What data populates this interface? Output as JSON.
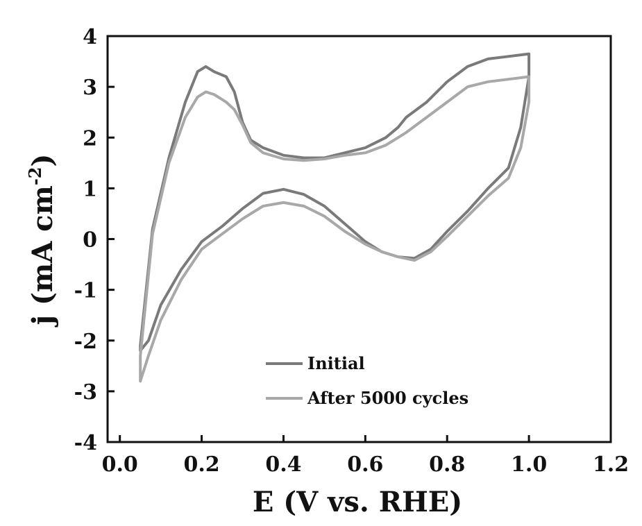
{
  "chart_data": {
    "type": "line",
    "title": "",
    "xlabel": "E (V vs. RHE)",
    "ylabel": "j (mA cm",
    "ylabel_superscript": "-2",
    "ylabel_suffix": ")",
    "xlim": [
      -0.03,
      1.2
    ],
    "ylim": [
      -4,
      4
    ],
    "xticks": [
      0.0,
      0.2,
      0.4,
      0.6,
      0.8,
      1.0,
      1.2
    ],
    "xtick_labels": [
      "0.0",
      "0.2",
      "0.4",
      "0.6",
      "0.8",
      "1.0",
      "1.2"
    ],
    "yticks": [
      -4,
      -3,
      -2,
      -1,
      0,
      1,
      2,
      3,
      4
    ],
    "ytick_labels": [
      "-4",
      "-3",
      "-2",
      "-1",
      "0",
      "1",
      "2",
      "3",
      "4"
    ],
    "grid": false,
    "legend_position": "bottom-center",
    "series": [
      {
        "name": "Initial",
        "color": "#7a7a7a",
        "x": [
          0.05,
          0.08,
          0.12,
          0.16,
          0.19,
          0.21,
          0.23,
          0.26,
          0.28,
          0.3,
          0.32,
          0.35,
          0.4,
          0.45,
          0.5,
          0.55,
          0.6,
          0.65,
          0.68,
          0.7,
          0.75,
          0.8,
          0.85,
          0.9,
          0.95,
          1.0,
          1.0,
          0.98,
          0.95,
          0.9,
          0.85,
          0.8,
          0.76,
          0.72,
          0.68,
          0.64,
          0.6,
          0.55,
          0.5,
          0.45,
          0.4,
          0.35,
          0.3,
          0.25,
          0.2,
          0.15,
          0.1,
          0.07,
          0.05
        ],
        "values": [
          -2.1,
          0.2,
          1.6,
          2.7,
          3.3,
          3.4,
          3.3,
          3.2,
          2.9,
          2.3,
          1.95,
          1.8,
          1.65,
          1.6,
          1.6,
          1.7,
          1.8,
          2.0,
          2.2,
          2.4,
          2.7,
          3.1,
          3.4,
          3.55,
          3.6,
          3.65,
          3.2,
          2.2,
          1.4,
          1.0,
          0.55,
          0.15,
          -0.2,
          -0.38,
          -0.35,
          -0.25,
          -0.05,
          0.3,
          0.65,
          0.88,
          0.98,
          0.9,
          0.6,
          0.25,
          -0.05,
          -0.6,
          -1.3,
          -2.0,
          -2.2
        ]
      },
      {
        "name": "After 5000 cycles",
        "color": "#a8a8a8",
        "x": [
          0.05,
          0.08,
          0.12,
          0.16,
          0.19,
          0.21,
          0.23,
          0.26,
          0.28,
          0.3,
          0.32,
          0.35,
          0.4,
          0.45,
          0.5,
          0.55,
          0.6,
          0.65,
          0.68,
          0.7,
          0.75,
          0.8,
          0.85,
          0.9,
          0.95,
          1.0,
          1.0,
          0.98,
          0.95,
          0.9,
          0.85,
          0.8,
          0.76,
          0.72,
          0.68,
          0.64,
          0.6,
          0.55,
          0.5,
          0.45,
          0.4,
          0.35,
          0.3,
          0.25,
          0.2,
          0.15,
          0.1,
          0.07,
          0.05
        ],
        "values": [
          -2.3,
          0.1,
          1.5,
          2.4,
          2.8,
          2.9,
          2.85,
          2.7,
          2.55,
          2.25,
          1.9,
          1.7,
          1.58,
          1.55,
          1.58,
          1.65,
          1.7,
          1.85,
          2.0,
          2.1,
          2.4,
          2.7,
          3.0,
          3.1,
          3.15,
          3.2,
          2.7,
          1.8,
          1.2,
          0.85,
          0.45,
          0.05,
          -0.25,
          -0.42,
          -0.35,
          -0.25,
          -0.1,
          0.15,
          0.45,
          0.65,
          0.72,
          0.65,
          0.4,
          0.1,
          -0.2,
          -0.8,
          -1.6,
          -2.3,
          -2.8
        ]
      }
    ]
  }
}
